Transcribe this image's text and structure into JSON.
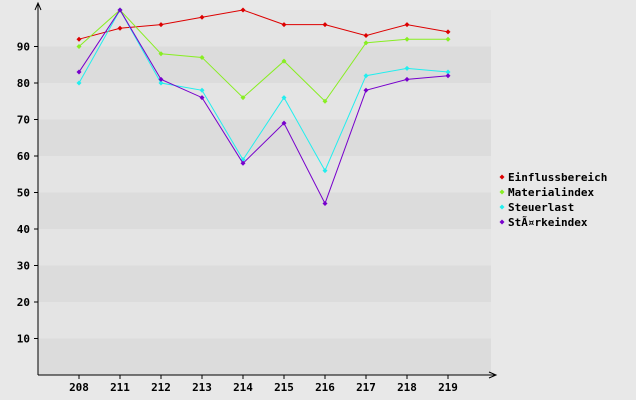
{
  "chart_data": {
    "type": "line",
    "categories": [
      "208",
      "211",
      "212",
      "213",
      "214",
      "215",
      "216",
      "217",
      "218",
      "219"
    ],
    "ylim": [
      0,
      100
    ],
    "yticks": [
      10,
      20,
      30,
      40,
      50,
      60,
      70,
      80,
      90
    ],
    "grid": "alternating horizontal bands",
    "legend_position": "right",
    "series": [
      {
        "name": "Einflussbereich",
        "color": "#dd0000",
        "values": [
          92,
          95,
          96,
          98,
          100,
          96,
          96,
          93,
          96,
          94
        ]
      },
      {
        "name": "Materialindex",
        "color": "#88ee22",
        "values": [
          90,
          100,
          88,
          87,
          76,
          86,
          75,
          91,
          92,
          92
        ]
      },
      {
        "name": "Steuerlast",
        "color": "#22eeee",
        "values": [
          80,
          100,
          80,
          78,
          59,
          76,
          56,
          82,
          84,
          83
        ]
      },
      {
        "name": "StÃ¤rkeindex",
        "color": "#7700cc",
        "values": [
          83,
          100,
          81,
          76,
          58,
          69,
          47,
          78,
          81,
          82
        ]
      }
    ]
  }
}
